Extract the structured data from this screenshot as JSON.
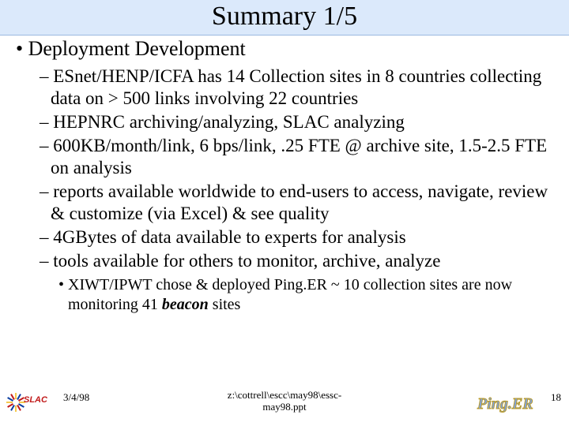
{
  "colors": {
    "title_bg": "#dbe9fb",
    "accent_line": "#9ab8e0",
    "text": "#000000",
    "background": "#ffffff",
    "slac_red": "#c11a1a",
    "slac_blue": "#0b3ea1",
    "slac_yellow": "#f5c94e",
    "pinger_fill": "#7fa3e3",
    "pinger_outline": "#b89a2a"
  },
  "font": {
    "family": "Times New Roman",
    "title_size_pt": 26,
    "l1_size_pt": 20,
    "l2_size_pt": 17,
    "l3_size_pt": 15,
    "footer_size_pt": 10
  },
  "title": "Summary 1/5",
  "l1": {
    "bullet": "•",
    "text": "Deployment Development"
  },
  "l2": [
    {
      "dash": "–",
      "text": "ESnet/HENP/ICFA has 14 Collection sites in 8 countries collecting data on > 500 links involving 22 countries"
    },
    {
      "dash": "–",
      "text": "HEPNRC archiving/analyzing, SLAC analyzing"
    },
    {
      "dash": "–",
      "text": "600KB/month/link, 6 bps/link, .25 FTE @ archive site, 1.5-2.5 FTE on analysis"
    },
    {
      "dash": "–",
      "text": "reports available worldwide to end-users to access, navigate, review & customize (via Excel) & see quality"
    },
    {
      "dash": "–",
      "text": "4GBytes of data available to experts for analysis"
    },
    {
      "dash": "–",
      "text": "tools available for others to monitor, archive, analyze"
    }
  ],
  "l3": {
    "bullet": "•",
    "pre": "XIWT/IPWT chose & deployed Ping.ER ~ 10 collection sites are now monitoring 41 ",
    "em": "beacon",
    "post": " sites"
  },
  "footer": {
    "date": "3/4/98",
    "path_line1": "z:\\cottrell\\escc\\may98\\essc-",
    "path_line2": "may98.ppt",
    "page": "18"
  },
  "logos": {
    "left_name": "SLAC",
    "right_name": "Ping.ER"
  }
}
